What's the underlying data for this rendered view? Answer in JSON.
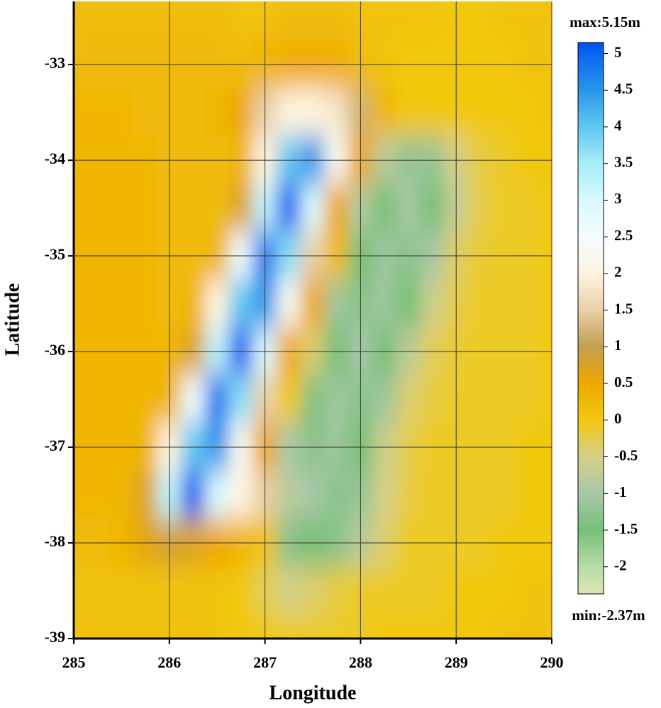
{
  "chart_data": {
    "type": "heatmap",
    "xlabel": "Longitude",
    "ylabel": "Latitude",
    "xlim": [
      285,
      290
    ],
    "ylim": [
      -39,
      -32.34
    ],
    "xticks": [
      285,
      286,
      287,
      288,
      289,
      290
    ],
    "yticks": [
      -33,
      -34,
      -35,
      -36,
      -37,
      -38,
      -39
    ],
    "grid": true,
    "x": [
      285,
      285.25,
      285.5,
      285.75,
      286,
      286.25,
      286.5,
      286.75,
      287,
      287.25,
      287.5,
      287.75,
      288,
      288.25,
      288.5,
      288.75,
      289,
      289.25,
      289.5,
      289.75,
      290
    ],
    "y": [
      -32.5,
      -33,
      -33.5,
      -34,
      -34.5,
      -35,
      -35.5,
      -36,
      -36.5,
      -37,
      -37.5,
      -38,
      -38.5,
      -39
    ],
    "z": [
      [
        0.2,
        0.2,
        0.2,
        0.2,
        0.2,
        0.2,
        0.2,
        0.1,
        0.1,
        0.2,
        0.2,
        0.2,
        0.1,
        0.1,
        0.1,
        0.1,
        0,
        0,
        0.1,
        0.1,
        0.1
      ],
      [
        0.2,
        0.2,
        0.2,
        0.2,
        0.2,
        0.2,
        0.2,
        0.2,
        0.3,
        0.4,
        0.4,
        0.4,
        0.2,
        0.1,
        0,
        0,
        0,
        0,
        0,
        0.1,
        0.1
      ],
      [
        0.3,
        0.3,
        0.3,
        0.2,
        0.2,
        0.2,
        0.3,
        0.5,
        1.5,
        2,
        2,
        1.8,
        1.2,
        0.3,
        0,
        0,
        0,
        0,
        0,
        0,
        0.1
      ],
      [
        0.3,
        0.3,
        0.3,
        0.3,
        0.2,
        0.2,
        0.2,
        0.3,
        2,
        4,
        4.5,
        2.3,
        0.5,
        -0.8,
        -1.2,
        -1.2,
        -0.5,
        -0.2,
        -0.1,
        0,
        0
      ],
      [
        0.3,
        0.3,
        0.3,
        0.3,
        0.2,
        0.2,
        0.2,
        0.7,
        3.3,
        5,
        3,
        0.5,
        -0.9,
        -1.5,
        -1,
        -1.5,
        -0.7,
        -0.25,
        -0.1,
        -0.1,
        0
      ],
      [
        0.3,
        0.3,
        0.3,
        0.3,
        0.2,
        0.2,
        0.3,
        2.6,
        4.8,
        3.7,
        1.5,
        0.2,
        -1.5,
        -1.1,
        -1.3,
        -1,
        -0.35,
        -0.15,
        -0.1,
        -0.1,
        0
      ],
      [
        0.3,
        0.3,
        0.3,
        0.3,
        0.2,
        0.3,
        2,
        4,
        4.5,
        2.3,
        0.5,
        -1.1,
        -1.3,
        -1.1,
        -1.5,
        -0.6,
        -0.25,
        -0.1,
        -0.1,
        -0.1,
        0
      ],
      [
        0.3,
        0.3,
        0.3,
        0.3,
        0.3,
        0.7,
        3.3,
        5,
        3,
        0.5,
        -0.4,
        -1.5,
        -1,
        -1.5,
        -0.8,
        -0.3,
        -0.15,
        -0.1,
        -0.1,
        -0.1,
        0
      ],
      [
        0.3,
        0.3,
        0.3,
        0.3,
        0.3,
        2.6,
        4.8,
        3.7,
        1.5,
        0,
        -1.4,
        -1.1,
        -1.3,
        -1.1,
        -0.4,
        -0.2,
        -0.1,
        -0.1,
        -0.1,
        -0.1,
        0
      ],
      [
        0.3,
        0.3,
        0.3,
        0.3,
        2,
        4,
        4.5,
        2.3,
        0.5,
        -1,
        -1.3,
        -1.1,
        -1.5,
        -0.6,
        -0.25,
        -0.1,
        -0.1,
        -0.1,
        -0.1,
        0,
        0
      ],
      [
        0.3,
        0.3,
        0.3,
        0.7,
        3.3,
        5,
        3,
        2,
        1.5,
        -0.8,
        -1,
        -1.3,
        -1.2,
        -0.5,
        -0.2,
        -0.1,
        -0.1,
        -0.1,
        -0.1,
        0,
        0
      ],
      [
        0.2,
        0.2,
        0.3,
        0.6,
        0.8,
        0.7,
        0.5,
        0.3,
        0.1,
        -1.3,
        -1.5,
        -1.3,
        -0.8,
        -0.4,
        -0.1,
        -0.1,
        -0.1,
        -0.1,
        0,
        0,
        0
      ],
      [
        0.1,
        0.1,
        0.1,
        0.1,
        0.1,
        0.1,
        0.1,
        0,
        -0.3,
        -0.5,
        -0.4,
        -0.2,
        -0.1,
        -0.1,
        -0.1,
        -0.1,
        0,
        0,
        0,
        0.1,
        0.1
      ],
      [
        0.1,
        0.1,
        0.1,
        0.1,
        0.1,
        0.1,
        0.1,
        0,
        0,
        -0.1,
        -0.1,
        -0.1,
        -0.1,
        0,
        0,
        0,
        0,
        0,
        0.1,
        0.1,
        0.1
      ]
    ],
    "colorbar": {
      "range": [
        {
          "value": -2.37,
          "label": "min:-2.37m"
        },
        {
          "value": 5.15,
          "label": "max:5.15m"
        }
      ],
      "ticks": [
        -2,
        -1.5,
        -1,
        -0.5,
        0,
        0.5,
        1,
        1.5,
        2,
        2.5,
        3,
        3.5,
        4,
        4.5,
        5
      ],
      "colorscale": [
        [
          -2.37,
          "#dce6b0"
        ],
        [
          -2,
          "#b8dca8"
        ],
        [
          -1.5,
          "#78c078"
        ],
        [
          -1,
          "#a8c8a8"
        ],
        [
          -0.5,
          "#d4d088"
        ],
        [
          0,
          "#f2c810"
        ],
        [
          0.5,
          "#eea800"
        ],
        [
          1,
          "#c0a050"
        ],
        [
          1.5,
          "#e8d0a8"
        ],
        [
          2,
          "#fff4e0"
        ],
        [
          2.5,
          "#f4fcff"
        ],
        [
          3,
          "#d8faff"
        ],
        [
          3.5,
          "#a8ecf8"
        ],
        [
          4,
          "#60c8f0"
        ],
        [
          4.5,
          "#2896ea"
        ],
        [
          5,
          "#0a64f0"
        ],
        [
          5.15,
          "#0050f0"
        ]
      ]
    }
  }
}
